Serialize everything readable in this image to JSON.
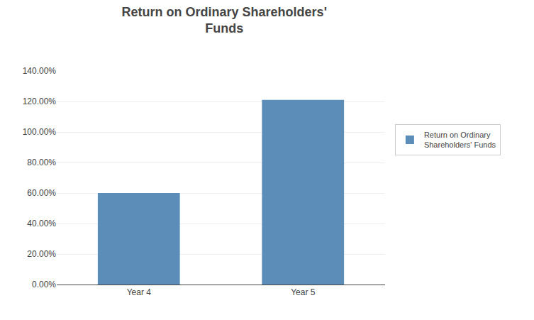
{
  "chart_data": {
    "type": "bar",
    "title": "Return on Ordinary Shareholders'\nFunds",
    "categories": [
      "Year 4",
      "Year 5"
    ],
    "series": [
      {
        "name": "Return on Ordinary\nShareholders' Funds",
        "color": "#5b8db8",
        "values": [
          0.6,
          1.21
        ]
      }
    ],
    "ylim": [
      0,
      1.4
    ],
    "yticks": [
      {
        "value": 0.0,
        "label": "0.00%"
      },
      {
        "value": 0.2,
        "label": "20.00%"
      },
      {
        "value": 0.4,
        "label": "40.00%"
      },
      {
        "value": 0.6,
        "label": "60.00%"
      },
      {
        "value": 0.8,
        "label": "80.00%"
      },
      {
        "value": 1.0,
        "label": "100.00%"
      },
      {
        "value": 1.2,
        "label": "120.00%"
      },
      {
        "value": 1.4,
        "label": "140.00%"
      }
    ],
    "grid": true,
    "legend": "right"
  }
}
